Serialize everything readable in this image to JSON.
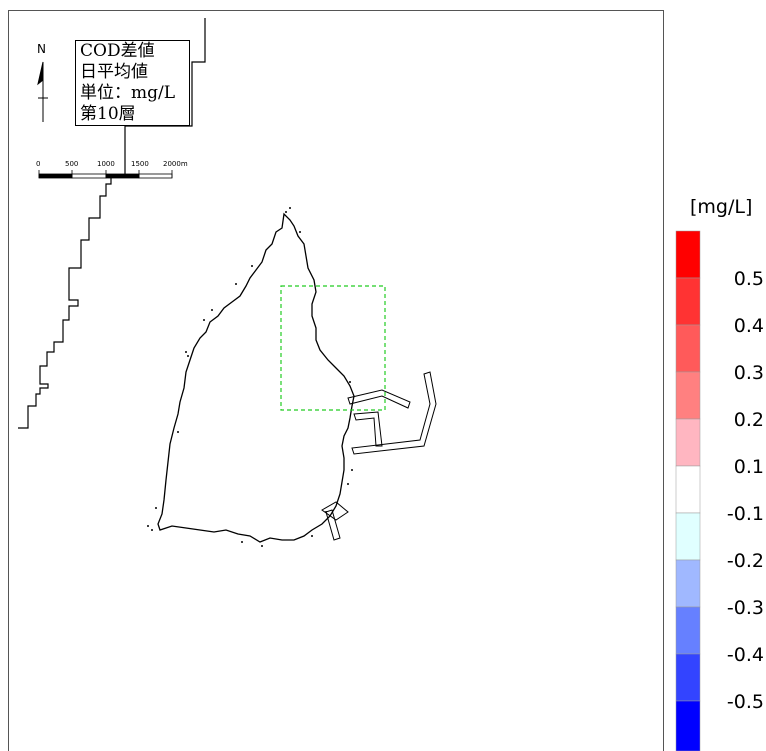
{
  "title_box": {
    "lines": [
      "COD差値",
      "日平均値",
      "単位：mg/L",
      "第10層"
    ]
  },
  "north_arrow": {
    "label": "N"
  },
  "scale_bar": {
    "labels": [
      "0",
      "500",
      "1000",
      "1500",
      "2000m"
    ]
  },
  "legend": {
    "unit": "[mg/L]",
    "bins": [
      {
        "color": "#ff0000"
      },
      {
        "color": "#ff3333"
      },
      {
        "color": "#ff5a5a"
      },
      {
        "color": "#ff8080"
      },
      {
        "color": "#ffb6c1"
      },
      {
        "color": "#ffffff"
      },
      {
        "color": "#e0ffff"
      },
      {
        "color": "#a0b8ff"
      },
      {
        "color": "#6680ff"
      },
      {
        "color": "#3344ff"
      },
      {
        "color": "#0000ff"
      }
    ],
    "labels": [
      "0.5",
      "0.4",
      "0.3",
      "0.2",
      "0.1",
      "-0.1",
      "-0.2",
      "-0.3",
      "-0.4",
      "-0.5"
    ]
  },
  "highlight_box_color": "#22cc22"
}
